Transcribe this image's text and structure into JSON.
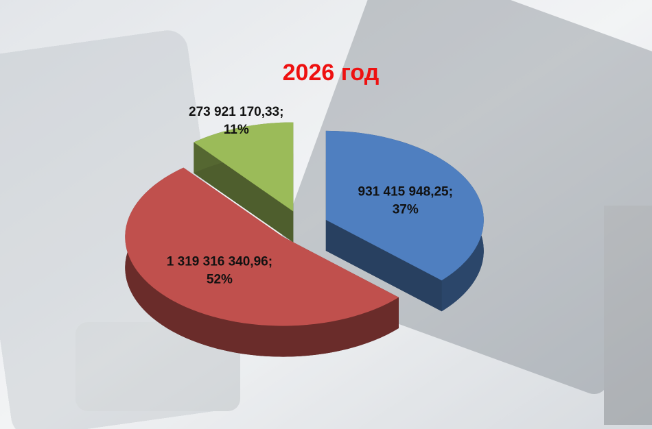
{
  "chart_data": {
    "type": "pie",
    "title": "2026 год",
    "values": [
      931415948.25,
      1319316340.96,
      273921170.33
    ],
    "value_labels": [
      "931 415 948,25;",
      "1 319 316 340,96;",
      "273 921 170,33;"
    ],
    "percent_labels": [
      "37%",
      "52%",
      "11%"
    ],
    "colors": [
      "#4f7fc0",
      "#c0504d",
      "#9bbb59"
    ]
  }
}
